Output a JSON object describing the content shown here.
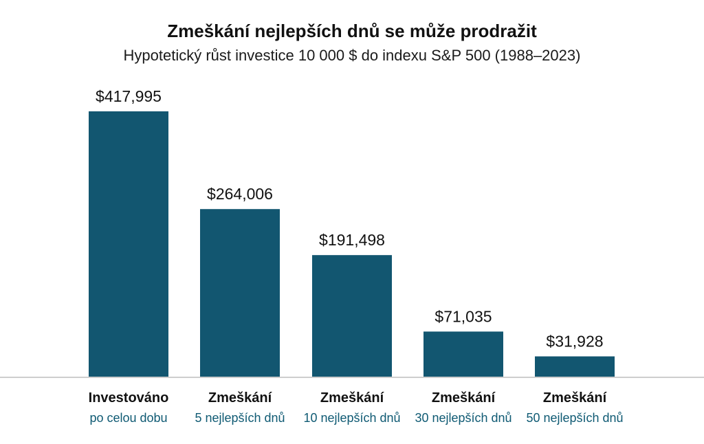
{
  "header": {
    "title": "Zmeškání nejlepších dnů se může prodražit",
    "subtitle": "Hypotetický růst investice 10 000 $ do indexu S&P 500 (1988–2023)"
  },
  "chart_data": {
    "type": "bar",
    "title": "Zmeškání nejlepších dnů se může prodražit",
    "subtitle": "Hypotetický růst investice 10 000 $ do indexu S&P 500 (1988–2023)",
    "categories": [
      {
        "line1": "Investováno",
        "line2": "po celou dobu"
      },
      {
        "line1": "Zmeškání",
        "line2": "5 nejlepších dnů"
      },
      {
        "line1": "Zmeškání",
        "line2": "10 nejlepších dnů"
      },
      {
        "line1": "Zmeškání",
        "line2": "30 nejlepších dnů"
      },
      {
        "line1": "Zmeškání",
        "line2": "50 nejlepších dnů"
      }
    ],
    "values": [
      417995,
      264006,
      191498,
      71035,
      31928
    ],
    "value_labels": [
      "$417,995",
      "$264,006",
      "$191,498",
      "$71,035",
      "$31,928"
    ],
    "xlabel": "",
    "ylabel": "",
    "ylim": [
      0,
      417995
    ],
    "grid": false,
    "legend": "none",
    "colors": {
      "bar": "#125670",
      "category_sub": "#0f5a73",
      "baseline": "#bdbdbd"
    }
  }
}
